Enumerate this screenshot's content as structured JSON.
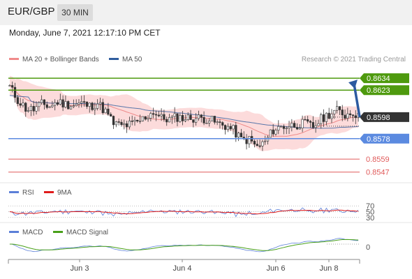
{
  "header": {
    "symbol": "EUR/GBP",
    "timeframe": "30 MIN"
  },
  "datetime": "Monday, June 7, 2021 12:17:10 PM CET",
  "credit": "Research © 2021 Trading Central",
  "colors": {
    "resistance": "#4e9a0e",
    "support": "#5b8ae0",
    "support_secondary": "#e05a5a",
    "current": "#333333",
    "ma50": "#2f5d9e",
    "bands": "#fbd5d5",
    "rsi": "#5b7fd8",
    "rsi_ma": "#e01b1b",
    "macd": "#5b7fd8",
    "macd_signal": "#49a01a",
    "arrow": "#2c5aa0",
    "candle": "#333333"
  },
  "chart_data": [
    {
      "type": "candlestick",
      "panel": "price",
      "legend": [
        {
          "label": "MA 20 + Bollinger Bands",
          "color": "#f08a8a"
        },
        {
          "label": "MA 50",
          "color": "#2f5d9e"
        }
      ],
      "levels": {
        "resistance": [
          0.8634,
          0.8623
        ],
        "current": 0.8598,
        "support": [
          0.8578
        ],
        "support_secondary": [
          0.8559,
          0.8547
        ]
      },
      "level_labels": [
        "0.8634",
        "0.8623",
        "0.8598",
        "0.8578",
        "0.8559",
        "0.8547"
      ],
      "ylim": [
        0.8541,
        0.8638
      ],
      "x_ticks": [
        "Jun 3",
        "Jun 4",
        "Jun 6",
        "Jun 8"
      ],
      "close_path": [
        [
          0,
          0.8626
        ],
        [
          3,
          0.8614
        ],
        [
          6,
          0.8606
        ],
        [
          9,
          0.8605
        ],
        [
          12,
          0.861
        ],
        [
          15,
          0.8608
        ],
        [
          18,
          0.8612
        ],
        [
          21,
          0.861
        ],
        [
          24,
          0.8609
        ],
        [
          27,
          0.8611
        ],
        [
          30,
          0.8608
        ],
        [
          33,
          0.8611
        ],
        [
          36,
          0.8603
        ],
        [
          39,
          0.8592
        ],
        [
          42,
          0.859
        ],
        [
          45,
          0.8591
        ],
        [
          48,
          0.8593
        ],
        [
          51,
          0.8598
        ],
        [
          54,
          0.8603
        ],
        [
          57,
          0.8597
        ],
        [
          60,
          0.8596
        ],
        [
          63,
          0.8598
        ],
        [
          66,
          0.8597
        ],
        [
          69,
          0.8597
        ],
        [
          72,
          0.8597
        ],
        [
          75,
          0.8596
        ],
        [
          78,
          0.8592
        ],
        [
          81,
          0.859
        ],
        [
          84,
          0.8586
        ],
        [
          87,
          0.8577
        ],
        [
          90,
          0.8577
        ],
        [
          93,
          0.857
        ],
        [
          96,
          0.8575
        ],
        [
          99,
          0.8586
        ],
        [
          102,
          0.8589
        ],
        [
          105,
          0.859
        ],
        [
          108,
          0.8591
        ],
        [
          111,
          0.8592
        ],
        [
          114,
          0.8589
        ],
        [
          117,
          0.8596
        ],
        [
          120,
          0.8601
        ],
        [
          123,
          0.8604
        ],
        [
          126,
          0.86
        ],
        [
          129,
          0.8603
        ],
        [
          131,
          0.8598
        ]
      ],
      "forecast": {
        "from": 0.8598,
        "to": 0.8634
      }
    },
    {
      "type": "line",
      "panel": "rsi",
      "legend": [
        {
          "label": "RSI",
          "color": "#5b7fd8"
        },
        {
          "label": "9MA",
          "color": "#e01b1b"
        }
      ],
      "levels": [
        70,
        50,
        30
      ],
      "level_labels": [
        "70",
        "50",
        "30"
      ],
      "ylim": [
        20,
        80
      ]
    },
    {
      "type": "line",
      "panel": "macd",
      "legend": [
        {
          "label": "MACD",
          "color": "#5b7fd8"
        },
        {
          "label": "MACD Signal",
          "color": "#49a01a"
        }
      ],
      "levels": [
        0
      ],
      "level_labels": [
        "0"
      ]
    }
  ]
}
